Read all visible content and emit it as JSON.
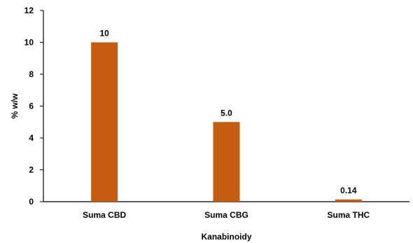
{
  "chart_data": {
    "type": "bar",
    "categories": [
      "Suma CBD",
      "Suma CBG",
      "Suma THC"
    ],
    "values": [
      10,
      5.0,
      0.14
    ],
    "data_labels": [
      "10",
      "5.0",
      "0.14"
    ],
    "title": "",
    "xlabel": "Kanabinoidy",
    "ylabel": "% w/w",
    "ylim": [
      0,
      12
    ],
    "yticks": [
      0,
      2,
      4,
      6,
      8,
      10,
      12
    ],
    "bar_color": "#C55A11",
    "grid": false,
    "legend": "none"
  }
}
